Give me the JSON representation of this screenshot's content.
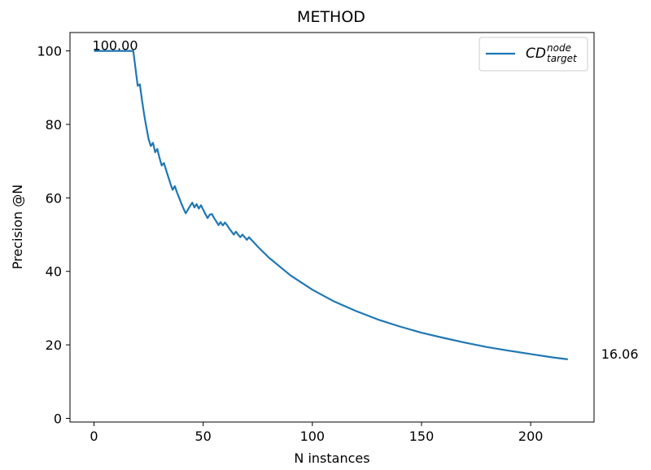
{
  "chart_data": {
    "type": "line",
    "title": "METHOD",
    "xlabel": "N instances",
    "ylabel": "Precision @N",
    "xlim": [
      -11,
      229
    ],
    "ylim": [
      -1,
      105
    ],
    "xticks": [
      0,
      50,
      100,
      150,
      200
    ],
    "yticks": [
      0,
      20,
      40,
      60,
      80,
      100
    ],
    "xtick_labels": [
      "0",
      "50",
      "100",
      "150",
      "200"
    ],
    "ytick_labels": [
      "0",
      "20",
      "40",
      "60",
      "80",
      "100"
    ],
    "grid": false,
    "legend_position": "top-right",
    "series": [
      {
        "name": "CD",
        "name_superscript": "node",
        "name_subscript": "target",
        "color": "#1f77b4",
        "x": [
          0,
          18,
          20,
          21,
          22,
          23,
          24,
          25,
          26,
          27,
          28,
          29,
          30,
          31,
          32,
          33,
          34,
          35,
          36,
          37,
          38,
          39,
          40,
          41,
          42,
          43,
          44,
          45,
          46,
          47,
          48,
          49,
          50,
          51,
          52,
          53,
          54,
          55,
          56,
          57,
          58,
          59,
          60,
          61,
          62,
          63,
          64,
          65,
          66,
          67,
          68,
          69,
          70,
          71,
          75,
          80,
          90,
          100,
          110,
          120,
          130,
          140,
          150,
          160,
          170,
          180,
          190,
          200,
          210,
          217
        ],
        "values": [
          100.0,
          100.0,
          90.5,
          90.9,
          86.4,
          82.6,
          79.2,
          76.0,
          74.1,
          75.0,
          72.4,
          73.3,
          70.9,
          68.8,
          69.5,
          67.6,
          65.7,
          63.9,
          62.2,
          63.2,
          61.5,
          60.0,
          58.5,
          57.1,
          55.8,
          56.8,
          57.8,
          58.7,
          57.4,
          58.3,
          57.1,
          58.0,
          56.8,
          55.6,
          54.5,
          55.4,
          55.6,
          54.5,
          53.6,
          52.6,
          53.4,
          52.5,
          53.3,
          52.5,
          51.6,
          50.8,
          50.0,
          50.8,
          50.0,
          49.3,
          50.0,
          49.3,
          48.6,
          49.3,
          46.7,
          43.8,
          38.9,
          35.0,
          31.8,
          29.2,
          26.9,
          25.0,
          23.3,
          21.9,
          20.6,
          19.4,
          18.4,
          17.5,
          16.6,
          16.06
        ]
      }
    ],
    "annotations": [
      {
        "text": "100.00",
        "x": 0,
        "y": 100.0,
        "anchor": "start"
      },
      {
        "text": "16.06",
        "x": 233,
        "y": 16.06,
        "anchor": "start"
      }
    ]
  }
}
